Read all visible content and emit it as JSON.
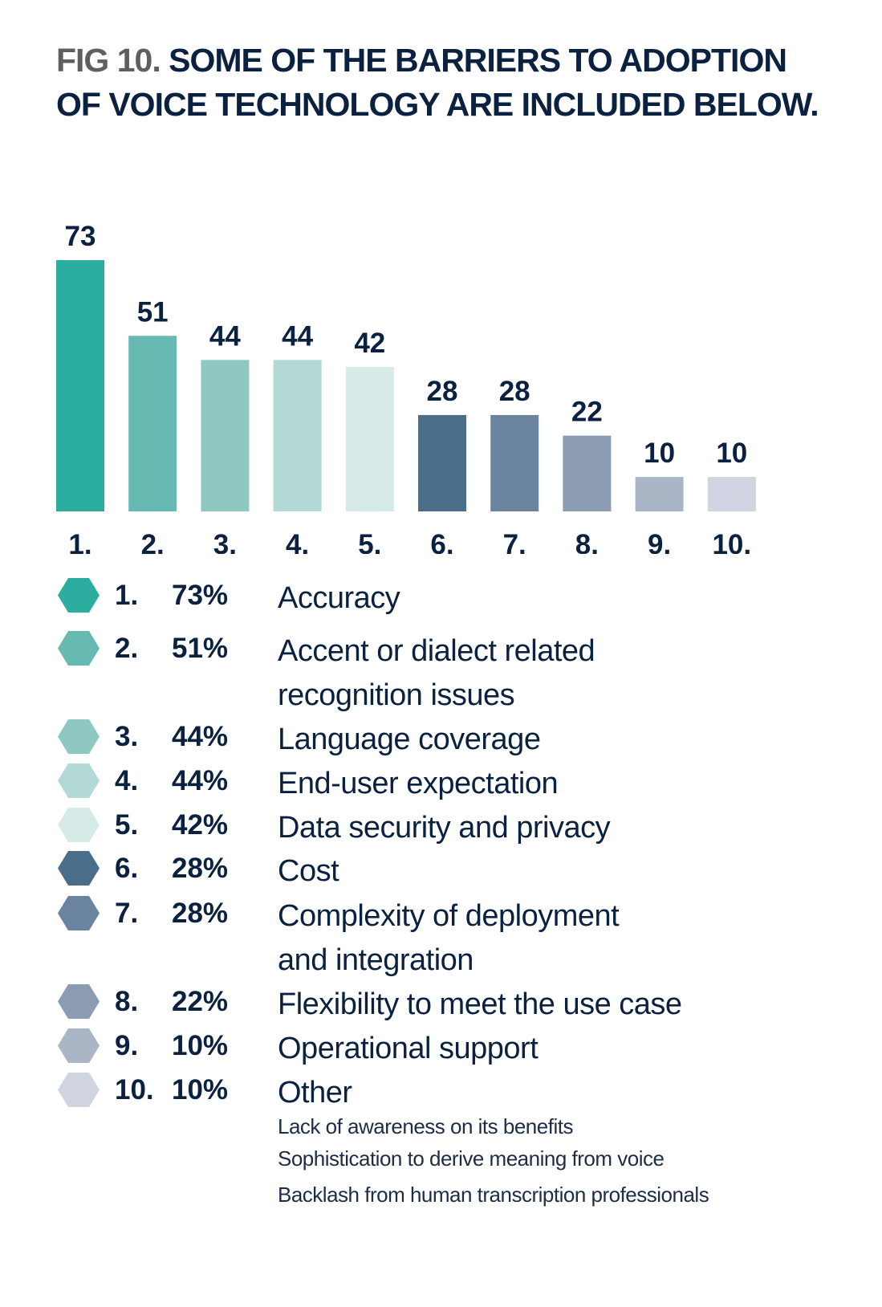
{
  "title": {
    "prefix": "FIG 10.",
    "text": "SOME OF THE BARRIERS TO ADOPTION OF VOICE TECHNOLOGY ARE INCLUDED BELOW."
  },
  "chart_data": {
    "type": "bar",
    "title": "FIG 10. SOME OF THE BARRIERS TO ADOPTION OF VOICE TECHNOLOGY ARE INCLUDED BELOW.",
    "xlabel": "",
    "ylabel": "",
    "ylim": [
      0,
      73
    ],
    "grid": false,
    "categories": [
      "1.",
      "2.",
      "3.",
      "4.",
      "5.",
      "6.",
      "7.",
      "8.",
      "9.",
      "10."
    ],
    "values": [
      73,
      51,
      44,
      44,
      42,
      28,
      28,
      22,
      10,
      10
    ],
    "value_labels": [
      "73",
      "51",
      "44",
      "44",
      "42",
      "28",
      "28",
      "22",
      "10",
      "10"
    ],
    "colors": [
      "#2bae9f",
      "#66bab2",
      "#8ec8c1",
      "#b2d9d5",
      "#d6eae7",
      "#4a6d8a",
      "#6a84a0",
      "#8a9bb2",
      "#aab6c6",
      "#cfd4e0"
    ],
    "legend": [
      {
        "num": "1.",
        "pct": "73%",
        "label": "Accuracy"
      },
      {
        "num": "2.",
        "pct": "51%",
        "label": "Accent or dialect related",
        "label2": "recognition issues"
      },
      {
        "num": "3.",
        "pct": "44%",
        "label": "Language coverage"
      },
      {
        "num": "4.",
        "pct": "44%",
        "label": "End-user expectation"
      },
      {
        "num": "5.",
        "pct": "42%",
        "label": "Data security and privacy"
      },
      {
        "num": "6.",
        "pct": "28%",
        "label": "Cost"
      },
      {
        "num": "7.",
        "pct": "28%",
        "label": "Complexity of deployment",
        "label2": "and integration"
      },
      {
        "num": "8.",
        "pct": "22%",
        "label": "Flexibility to meet the use case"
      },
      {
        "num": "9.",
        "pct": "10%",
        "label": "Operational support"
      },
      {
        "num": "10.",
        "pct": "10%",
        "label": "Other"
      }
    ],
    "other_details": [
      "Lack of awareness on its benefits",
      "Sophistication to derive meaning from voice",
      "Backlash from human transcription professionals"
    ]
  }
}
